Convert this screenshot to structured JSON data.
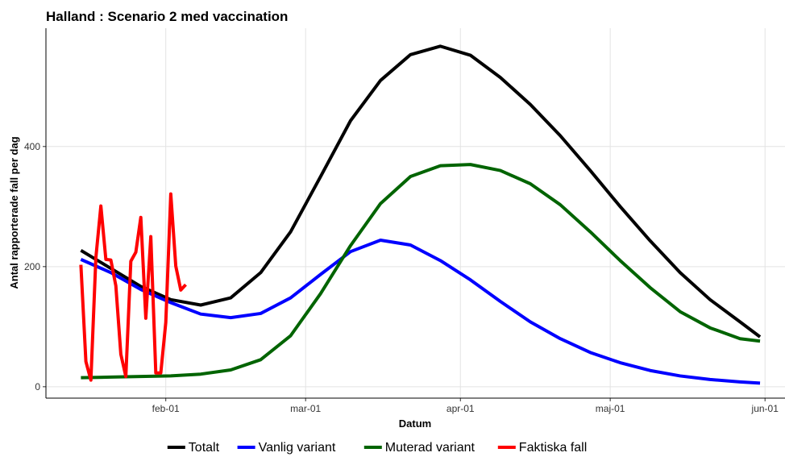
{
  "chart_data": {
    "type": "line",
    "title": "Halland : Scenario 2 med vaccination",
    "xlabel": "Datum",
    "ylabel": "Antal rapporterade fall per dag",
    "xlim": [
      7,
      155
    ],
    "ylim": [
      -19,
      597
    ],
    "xticks": [
      {
        "value": 31,
        "label": "feb-01"
      },
      {
        "value": 59,
        "label": "mar-01"
      },
      {
        "value": 90,
        "label": "apr-01"
      },
      {
        "value": 120,
        "label": "maj-01"
      },
      {
        "value": 151,
        "label": "jun-01"
      }
    ],
    "yticks": [
      0,
      200,
      400
    ],
    "grid": true,
    "legend": "bottom",
    "series": [
      {
        "name": "Totalt",
        "color": "#000000",
        "x": [
          14,
          20,
          26,
          32,
          38,
          44,
          50,
          56,
          62,
          68,
          74,
          80,
          86,
          92,
          98,
          104,
          110,
          116,
          122,
          128,
          134,
          140,
          146,
          150
        ],
        "values": [
          227,
          197,
          167,
          145,
          136,
          148,
          190,
          258,
          350,
          443,
          510,
          553,
          567,
          552,
          515,
          470,
          418,
          360,
          300,
          243,
          190,
          145,
          108,
          83
        ]
      },
      {
        "name": "Vanlig variant",
        "color": "#0000ff",
        "x": [
          14,
          20,
          26,
          32,
          38,
          44,
          50,
          56,
          62,
          68,
          74,
          80,
          86,
          92,
          98,
          104,
          110,
          116,
          122,
          128,
          134,
          140,
          146,
          150
        ],
        "values": [
          212,
          190,
          162,
          140,
          121,
          115,
          122,
          148,
          187,
          225,
          244,
          236,
          210,
          178,
          142,
          108,
          80,
          57,
          40,
          27,
          18,
          12,
          8,
          6
        ]
      },
      {
        "name": "Muterad variant",
        "color": "#006400",
        "x": [
          14,
          20,
          26,
          32,
          38,
          44,
          50,
          56,
          62,
          68,
          74,
          80,
          86,
          92,
          98,
          104,
          110,
          116,
          122,
          128,
          134,
          140,
          146,
          150
        ],
        "values": [
          15,
          16,
          17,
          18,
          21,
          28,
          45,
          85,
          155,
          235,
          305,
          350,
          368,
          370,
          360,
          338,
          303,
          258,
          210,
          165,
          125,
          98,
          80,
          76
        ]
      },
      {
        "name": "Faktiska fall",
        "color": "#ff0000",
        "x": [
          14,
          15,
          16,
          17,
          18,
          19,
          20,
          21,
          22,
          23,
          24,
          25,
          26,
          27,
          28,
          29,
          30,
          31,
          32,
          33,
          34,
          35
        ],
        "values": [
          203,
          42,
          11,
          215,
          301,
          212,
          211,
          168,
          54,
          17,
          209,
          224,
          282,
          114,
          250,
          23,
          23,
          107,
          321,
          201,
          161,
          170
        ]
      }
    ]
  }
}
